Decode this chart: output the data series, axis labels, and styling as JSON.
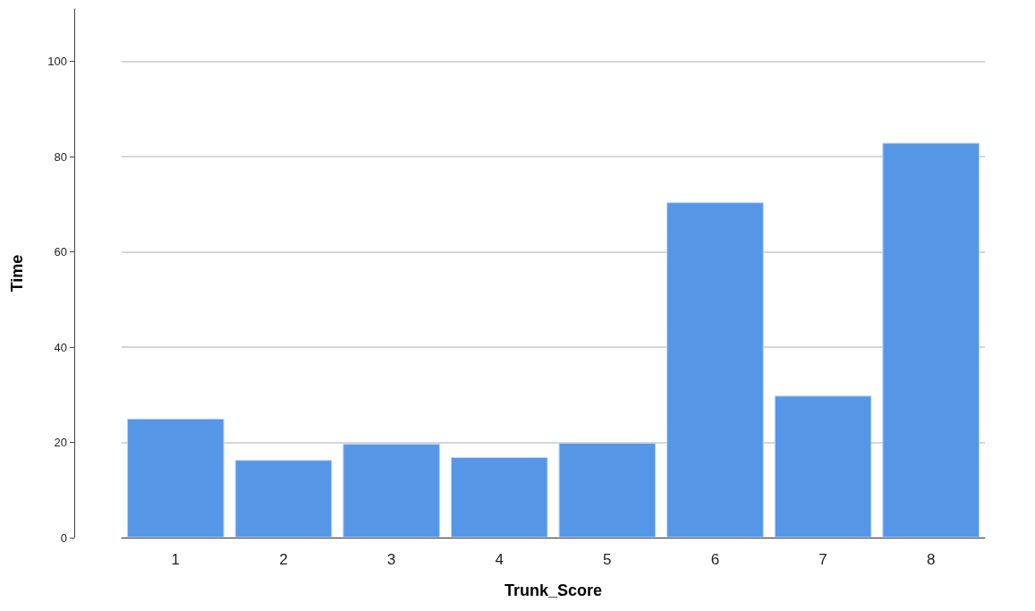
{
  "chart_data": {
    "type": "bar",
    "xlabel": "Trunk_Score",
    "ylabel": "Time",
    "categories": [
      "1",
      "2",
      "3",
      "4",
      "5",
      "6",
      "7",
      "8"
    ],
    "values": [
      25,
      16.3,
      19.7,
      16.9,
      19.9,
      70.4,
      29.8,
      82.9
    ],
    "color": "#5596e6",
    "ylim": [
      0,
      111
    ],
    "yticks": [
      0,
      20,
      40,
      60,
      80,
      100
    ],
    "grid": "y"
  }
}
